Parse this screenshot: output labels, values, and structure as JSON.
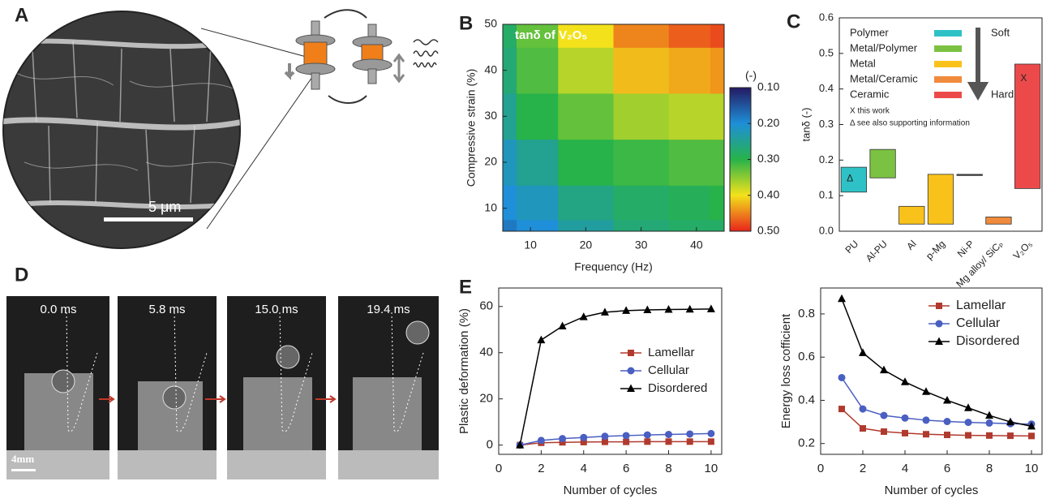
{
  "panels": {
    "labels": [
      "A",
      "B",
      "C",
      "D",
      "E"
    ]
  },
  "panel_a": {
    "scale_bar": "5 μm"
  },
  "panel_d": {
    "times": [
      "0.0 ms",
      "5.8 ms",
      "15.0 ms",
      "19.4 ms"
    ],
    "scale_bar": "4mm"
  },
  "chart_data": [
    {
      "type": "contour",
      "title": "tanδ of V₂O₅",
      "xlabel": "Frequency (Hz)",
      "ylabel": "Compressive strain (%)",
      "x": [
        5,
        10,
        20,
        30,
        40,
        45
      ],
      "y": [
        5,
        10,
        20,
        30,
        40,
        50
      ],
      "z": [
        [
          0.18,
          0.2,
          0.24,
          0.27,
          0.28,
          0.28
        ],
        [
          0.2,
          0.22,
          0.26,
          0.28,
          0.29,
          0.3
        ],
        [
          0.22,
          0.25,
          0.3,
          0.31,
          0.32,
          0.32
        ],
        [
          0.25,
          0.3,
          0.33,
          0.36,
          0.37,
          0.37
        ],
        [
          0.27,
          0.32,
          0.37,
          0.42,
          0.43,
          0.44
        ],
        [
          0.28,
          0.33,
          0.4,
          0.45,
          0.47,
          0.48
        ]
      ],
      "xlim": [
        5,
        45
      ],
      "ylim": [
        5,
        50
      ],
      "xticks": [
        10,
        20,
        30,
        40
      ],
      "yticks": [
        10,
        20,
        30,
        40,
        50
      ],
      "colorbar_label": "(-)",
      "zlim": [
        0.1,
        0.5
      ],
      "zticks": [
        {
          "value": 0.1,
          "label": "0.10"
        },
        {
          "value": 0.2,
          "label": "0.20"
        },
        {
          "value": 0.3,
          "label": "0.30"
        },
        {
          "value": 0.4,
          "label": "0.40"
        },
        {
          "value": 0.5,
          "label": "0.50"
        }
      ],
      "colormap": [
        "#241a62",
        "#1e8fd8",
        "#27b34a",
        "#f3e21b",
        "#e8251c"
      ]
    },
    {
      "type": "floating_bar",
      "ylabel": "tanδ (-)",
      "categories": [
        "PU",
        "Al-PU",
        "Al",
        "p-Mg",
        "Ni-P",
        "Mg alloy/ SiCₚ",
        "V₂O₅"
      ],
      "low": [
        0.11,
        0.15,
        0.02,
        0.02,
        0.16,
        0.02,
        0.12
      ],
      "high": [
        0.18,
        0.23,
        0.07,
        0.16,
        0.16,
        0.04,
        0.47
      ],
      "colors": [
        "#2ec2c6",
        "#7cc242",
        "#f9c21b",
        "#f9c21b",
        "#444444",
        "#f08a3c",
        "#ec4a4a"
      ],
      "marker_labels": [
        "Δ",
        null,
        null,
        null,
        null,
        null,
        "X"
      ],
      "ylim": [
        0,
        0.6
      ],
      "yticks": [
        {
          "value": 0,
          "label": "0.0"
        },
        0.1,
        0.2,
        0.3,
        0.4,
        0.5,
        0.6
      ],
      "series": [
        {
          "name": "Polymer",
          "color": "#2ec2c6"
        },
        {
          "name": "Metal/Polymer",
          "color": "#7cc242"
        },
        {
          "name": "Metal",
          "color": "#f9c21b"
        },
        {
          "name": "Metal/Ceramic",
          "color": "#f08a3c"
        },
        {
          "name": "Ceramic",
          "color": "#ec4a4a"
        }
      ],
      "arrow_labels": [
        "Soft",
        "Hard"
      ],
      "notes": [
        "X  this work",
        "Δ  see also supporting information"
      ]
    },
    {
      "type": "line",
      "xlabel": "Number of cycles",
      "ylabel": "Plastic deformation (%)",
      "x": [
        1,
        2,
        3,
        4,
        5,
        6,
        7,
        8,
        9,
        10
      ],
      "xlim": [
        0,
        10.5
      ],
      "ylim": [
        -4,
        68
      ],
      "xticks": [
        0,
        2,
        4,
        6,
        8,
        10
      ],
      "yticks": [
        0,
        20,
        40,
        60
      ],
      "legend": "center right",
      "series": [
        {
          "name": "Lamellar",
          "color": "#b03a2e",
          "marker": "square",
          "values": [
            0,
            1,
            1.2,
            1.3,
            1.4,
            1.4,
            1.5,
            1.5,
            1.5,
            1.5
          ]
        },
        {
          "name": "Cellular",
          "color": "#4a5fc1",
          "marker": "circle",
          "values": [
            0,
            2,
            2.8,
            3.3,
            3.8,
            4.1,
            4.4,
            4.6,
            4.8,
            5
          ]
        },
        {
          "name": "Disordered",
          "color": "#000000",
          "marker": "triangle",
          "values": [
            0,
            45.5,
            51.5,
            55.5,
            57.5,
            58.2,
            58.5,
            58.7,
            58.8,
            58.9
          ]
        }
      ]
    },
    {
      "type": "line",
      "xlabel": "Number of cycles",
      "ylabel": "Energy loss cofficient",
      "x": [
        1,
        2,
        3,
        4,
        5,
        6,
        7,
        8,
        9,
        10
      ],
      "xlim": [
        0,
        10.5
      ],
      "ylim": [
        0.15,
        0.92
      ],
      "xticks": [
        0,
        2,
        4,
        6,
        8,
        10
      ],
      "yticks": [
        0.2,
        0.4,
        0.6,
        0.8
      ],
      "legend": "upper right",
      "series": [
        {
          "name": "Lamellar",
          "color": "#b03a2e",
          "marker": "square",
          "values": [
            0.36,
            0.27,
            0.255,
            0.248,
            0.243,
            0.24,
            0.238,
            0.237,
            0.236,
            0.235
          ]
        },
        {
          "name": "Cellular",
          "color": "#4a5fc1",
          "marker": "circle",
          "values": [
            0.505,
            0.36,
            0.33,
            0.318,
            0.308,
            0.302,
            0.298,
            0.295,
            0.292,
            0.29
          ]
        },
        {
          "name": "Disordered",
          "color": "#000000",
          "marker": "triangle",
          "values": [
            0.87,
            0.62,
            0.54,
            0.485,
            0.44,
            0.4,
            0.365,
            0.33,
            0.3,
            0.28
          ]
        }
      ]
    }
  ]
}
